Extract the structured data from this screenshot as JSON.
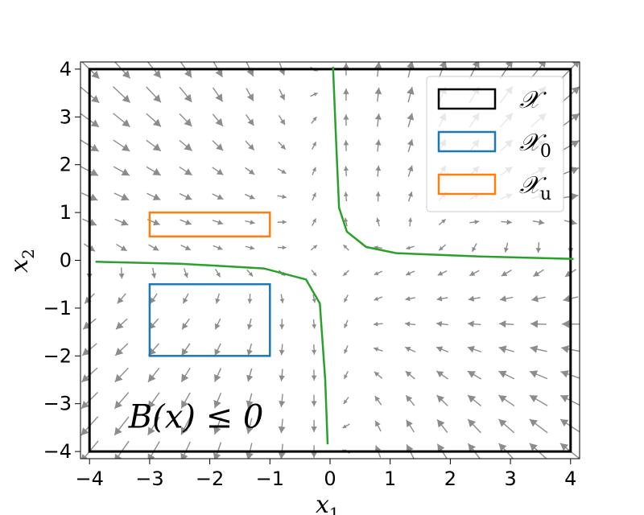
{
  "chart_data": {
    "type": "quiver",
    "xlabel": "x",
    "xlabel_sub": "1",
    "ylabel": "x",
    "ylabel_sub": "2",
    "xlim": [
      -4.15,
      4.15
    ],
    "ylim": [
      -4.15,
      4.15
    ],
    "xticks": [
      -4,
      -3,
      -2,
      -1,
      0,
      1,
      2,
      3,
      4
    ],
    "yticks": [
      -4,
      -3,
      -2,
      -1,
      0,
      1,
      2,
      3,
      4
    ],
    "xtick_labels": [
      "−4",
      "−3",
      "−2",
      "−1",
      "0",
      "1",
      "2",
      "3",
      "4"
    ],
    "ytick_labels": [
      "−4",
      "−3",
      "−2",
      "−1",
      "0",
      "1",
      "2",
      "3",
      "4"
    ],
    "grid": false,
    "annotation": {
      "text": "B(x) ≤ 0",
      "x": -3.35,
      "y": -3.5
    },
    "vector_field": {
      "x_range": [
        -4,
        4
      ],
      "y_range": [
        -4,
        4
      ],
      "samples_per_axis": 16,
      "color": "#8c8c8c"
    },
    "regions": [
      {
        "label": "𝒳",
        "color": "#000000",
        "x": [
          -4,
          4
        ],
        "y": [
          -4,
          4
        ]
      },
      {
        "label": "𝒳",
        "sub": "0",
        "color": "#1f77b4",
        "x": [
          -3,
          -1
        ],
        "y": [
          -2,
          -0.5
        ]
      },
      {
        "label": "𝒳",
        "sub": "u",
        "color": "#ff7f0e",
        "x": [
          -3,
          -1
        ],
        "y": [
          0.5,
          1
        ]
      }
    ],
    "boundary_color": "#2ca02c",
    "boundary_curves": [
      {
        "points": [
          [
            0.05,
            4.05
          ],
          [
            0.1,
            2.5
          ],
          [
            0.15,
            1.1
          ],
          [
            0.28,
            0.6
          ],
          [
            0.6,
            0.28
          ],
          [
            1.1,
            0.15
          ],
          [
            2.5,
            0.08
          ],
          [
            4.05,
            0.03
          ]
        ]
      },
      {
        "points": [
          [
            -3.9,
            -0.03
          ],
          [
            -2.5,
            -0.07
          ],
          [
            -1.1,
            -0.17
          ],
          [
            -0.4,
            -0.4
          ],
          [
            -0.17,
            -0.9
          ],
          [
            -0.08,
            -2.5
          ],
          [
            -0.04,
            -3.85
          ]
        ]
      }
    ],
    "legend": {
      "placement": "top-right",
      "entries": [
        {
          "text": "𝒳",
          "sub": ""
        },
        {
          "text": "𝒳",
          "sub": "0"
        },
        {
          "text": "𝒳",
          "sub": "u"
        }
      ]
    }
  }
}
